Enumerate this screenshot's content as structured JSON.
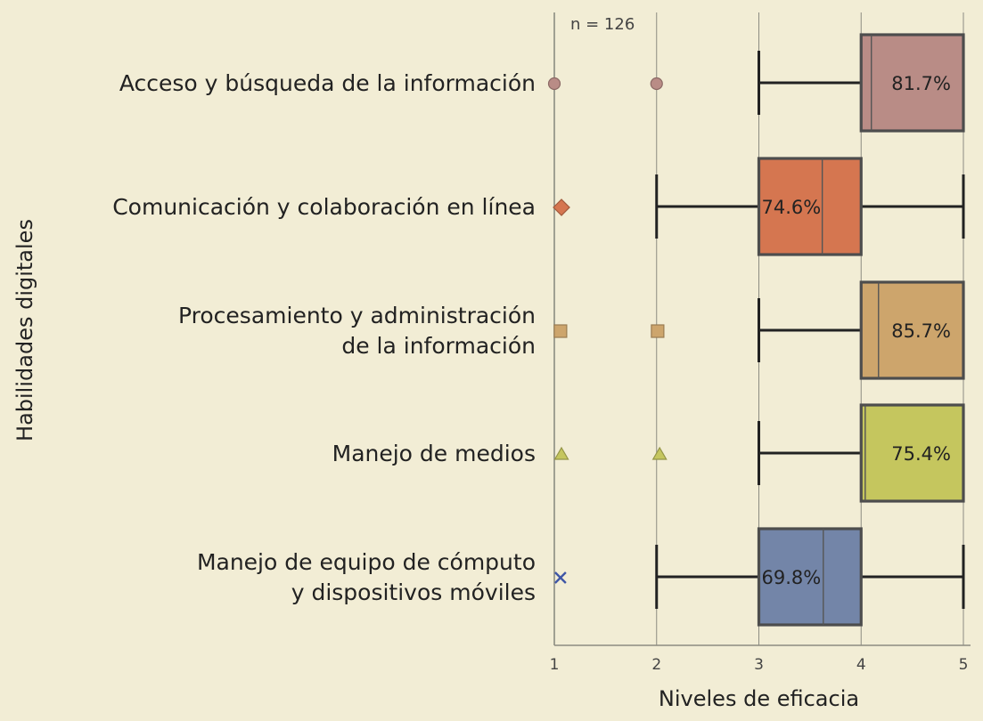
{
  "chart_data": {
    "type": "boxplot",
    "n_label": "n = 126",
    "xlabel": "Niveles de eficacia",
    "ylabel": "Habilidades digitales",
    "xlim": [
      1,
      5
    ],
    "xticks": [
      "1",
      "2",
      "3",
      "4",
      "5"
    ],
    "grid": true,
    "series": [
      {
        "category_lines": [
          "Acceso y búsqueda de la información"
        ],
        "whisker_low": 3,
        "q1": 4,
        "median": 4.1,
        "q3": 5,
        "whisker_high": 5,
        "outliers": [
          1,
          2
        ],
        "outlier_marker": "circle",
        "percent_label": "81.7%",
        "color": "#b98c86"
      },
      {
        "category_lines": [
          "Comunicación y colaboración en línea"
        ],
        "whisker_low": 2,
        "q1": 3,
        "median": 3.62,
        "q3": 4,
        "whisker_high": 5,
        "outliers": [
          1.07
        ],
        "outlier_marker": "diamond",
        "percent_label": "74.6%",
        "color": "#d57650"
      },
      {
        "category_lines": [
          "Procesamiento y administración",
          "de la información"
        ],
        "whisker_low": 3,
        "q1": 4,
        "median": 4.17,
        "q3": 5,
        "whisker_high": 5,
        "outliers": [
          1.06,
          2.01
        ],
        "outlier_marker": "square",
        "percent_label": "85.7%",
        "color": "#cda56c"
      },
      {
        "category_lines": [
          "Manejo de medios"
        ],
        "whisker_low": 3,
        "q1": 4,
        "median": 4.04,
        "q3": 5,
        "whisker_high": 5,
        "outliers": [
          1.07,
          2.03
        ],
        "outlier_marker": "triangle",
        "percent_label": "75.4%",
        "color": "#c5c65e"
      },
      {
        "category_lines": [
          "Manejo de equipo de cómputo",
          "y dispositivos móviles"
        ],
        "whisker_low": 2,
        "q1": 3,
        "median": 3.63,
        "q3": 4,
        "whisker_high": 5,
        "outliers": [
          1.06
        ],
        "outlier_marker": "x",
        "percent_label": "69.8%",
        "color": "#7385a8"
      }
    ]
  },
  "colors": {
    "background": "#f2edd5",
    "grid": "#8c8c82",
    "box_border": "#4d4d4d",
    "x_marker": "#3f56a6"
  }
}
